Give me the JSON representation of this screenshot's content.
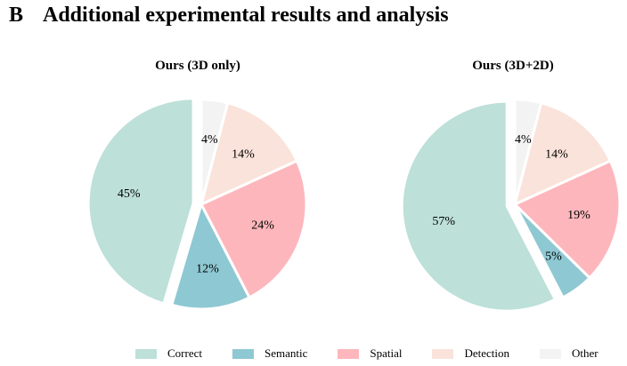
{
  "section": {
    "letter": "B",
    "title": "Additional experimental results and analysis"
  },
  "legend": [
    {
      "label": "Correct",
      "color": "#bde0d9"
    },
    {
      "label": "Semantic",
      "color": "#8ec8d3"
    },
    {
      "label": "Spatial",
      "color": "#fdb7bc"
    },
    {
      "label": "Detection",
      "color": "#fae3da"
    },
    {
      "label": "Other",
      "color": "#f3f3f3"
    }
  ],
  "chart_data": [
    {
      "type": "pie",
      "title": "Ours (3D only)",
      "categories": [
        "Correct",
        "Semantic",
        "Spatial",
        "Detection",
        "Other"
      ],
      "values": [
        45,
        12,
        24,
        14,
        4
      ],
      "labels": [
        "45%",
        "12%",
        "24%",
        "14%",
        "4%"
      ],
      "exploded": [
        "Correct"
      ]
    },
    {
      "type": "pie",
      "title": "Ours (3D+2D)",
      "categories": [
        "Correct",
        "Semantic",
        "Spatial",
        "Detection",
        "Other"
      ],
      "values": [
        57,
        5,
        19,
        14,
        4
      ],
      "labels": [
        "57%",
        "5%",
        "19%",
        "14%",
        "4%"
      ],
      "exploded": [
        "Correct"
      ]
    }
  ]
}
